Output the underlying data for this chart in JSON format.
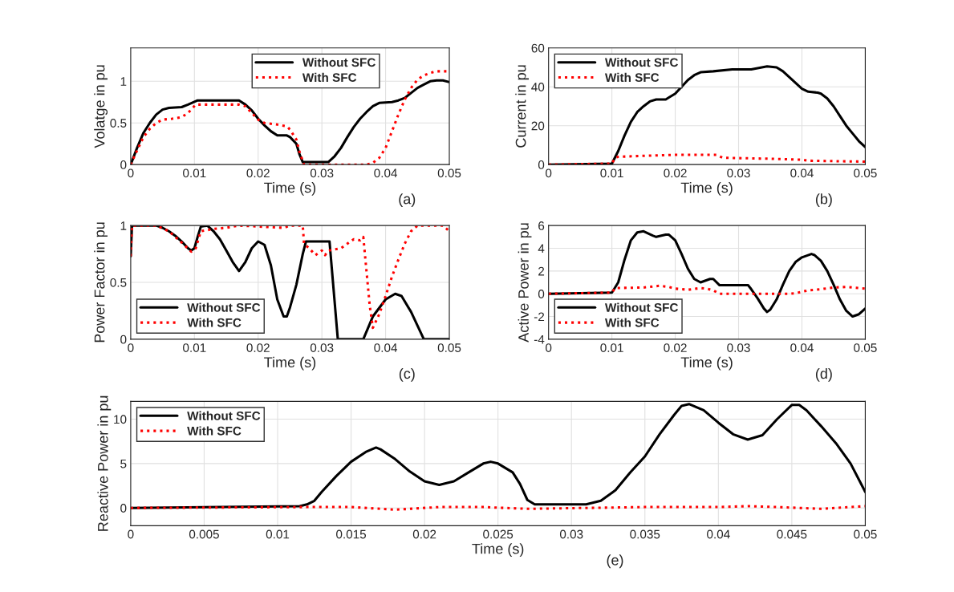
{
  "chart_data": [
    {
      "type": "line",
      "xlabel": "Time (s)",
      "ylabel": "Volatge in pu",
      "annotations": [
        "(a)"
      ],
      "xlim": [
        0,
        0.05
      ],
      "xticks": [
        0,
        0.01,
        0.02,
        0.03,
        0.04,
        0.05
      ],
      "ylim": [
        0,
        1.4
      ],
      "yticks": [
        0,
        0.5,
        1
      ],
      "grid": true,
      "legend": "top right",
      "series": [
        {
          "name": "Without SFC",
          "color": "#000000",
          "line_style": "solid",
          "x": [
            0,
            0.001,
            0.002,
            0.003,
            0.004,
            0.005,
            0.006,
            0.008,
            0.009,
            0.0105,
            0.017,
            0.018,
            0.019,
            0.02,
            0.021,
            0.022,
            0.023,
            0.0245,
            0.025,
            0.026,
            0.0265,
            0.027,
            0.031,
            0.032,
            0.033,
            0.034,
            0.035,
            0.036,
            0.037,
            0.038,
            0.039,
            0.041,
            0.042,
            0.043,
            0.044,
            0.045,
            0.046,
            0.047,
            0.048,
            0.049,
            0.05
          ],
          "values": [
            0,
            0.2,
            0.38,
            0.5,
            0.6,
            0.66,
            0.68,
            0.69,
            0.72,
            0.77,
            0.77,
            0.72,
            0.65,
            0.55,
            0.47,
            0.4,
            0.35,
            0.35,
            0.33,
            0.25,
            0.12,
            0.03,
            0.03,
            0.1,
            0.2,
            0.33,
            0.45,
            0.55,
            0.63,
            0.7,
            0.74,
            0.75,
            0.77,
            0.8,
            0.86,
            0.92,
            0.96,
            1.0,
            1.01,
            1.01,
            0.99
          ]
        },
        {
          "name": "With SFC",
          "color": "#ff0000",
          "line_style": "dotted",
          "x": [
            0,
            0.001,
            0.002,
            0.003,
            0.004,
            0.005,
            0.0065,
            0.008,
            0.009,
            0.0102,
            0.017,
            0.018,
            0.019,
            0.02,
            0.021,
            0.023,
            0.0245,
            0.025,
            0.026,
            0.0265,
            0.0272,
            0.037,
            0.038,
            0.039,
            0.04,
            0.041,
            0.042,
            0.043,
            0.044,
            0.045,
            0.046,
            0.047,
            0.048,
            0.05
          ],
          "values": [
            0,
            0.17,
            0.33,
            0.43,
            0.5,
            0.54,
            0.55,
            0.57,
            0.62,
            0.72,
            0.72,
            0.7,
            0.62,
            0.54,
            0.5,
            0.48,
            0.46,
            0.42,
            0.3,
            0.15,
            0,
            0,
            0.02,
            0.08,
            0.2,
            0.4,
            0.6,
            0.78,
            0.92,
            1.02,
            1.07,
            1.1,
            1.12,
            1.12
          ]
        }
      ]
    },
    {
      "type": "line",
      "xlabel": "Time (s)",
      "ylabel": "Current in pu",
      "annotations": [
        "(b)"
      ],
      "xlim": [
        0,
        0.05
      ],
      "xticks": [
        0,
        0.01,
        0.02,
        0.03,
        0.04,
        0.05
      ],
      "ylim": [
        0,
        60
      ],
      "yticks": [
        0,
        20,
        40,
        60
      ],
      "grid": true,
      "legend": "top left",
      "series": [
        {
          "name": "Without SFC",
          "color": "#000000",
          "line_style": "solid",
          "x": [
            0,
            0.01,
            0.011,
            0.012,
            0.013,
            0.014,
            0.015,
            0.016,
            0.017,
            0.0185,
            0.019,
            0.02,
            0.021,
            0.022,
            0.023,
            0.024,
            0.026,
            0.029,
            0.032,
            0.0345,
            0.036,
            0.037,
            0.038,
            0.039,
            0.04,
            0.041,
            0.0425,
            0.043,
            0.044,
            0.045,
            0.046,
            0.047,
            0.048,
            0.049,
            0.05
          ],
          "values": [
            0,
            0.5,
            7,
            15,
            22,
            27,
            30,
            32.5,
            33.5,
            33.5,
            34.5,
            36.5,
            40,
            43.5,
            46,
            47.5,
            48,
            49,
            49,
            50.5,
            50,
            48,
            45,
            42,
            39,
            37.5,
            37,
            36.5,
            34,
            30,
            25,
            20,
            16,
            12,
            9
          ]
        },
        {
          "name": "With SFC",
          "color": "#ff0000",
          "line_style": "dotted",
          "x": [
            0,
            0.01,
            0.0105,
            0.011,
            0.015,
            0.02,
            0.0265,
            0.0275,
            0.035,
            0.04,
            0.041,
            0.05
          ],
          "values": [
            0,
            0.5,
            3.5,
            4,
            4.5,
            5,
            5,
            3.5,
            3,
            2.5,
            2,
            1.5
          ]
        }
      ]
    },
    {
      "type": "line",
      "xlabel": "Time (s)",
      "ylabel": "Power Factor in pu",
      "annotations": [
        "(c)"
      ],
      "xlim": [
        0,
        0.05
      ],
      "xticks": [
        0,
        0.01,
        0.02,
        0.03,
        0.04,
        0.05
      ],
      "ylim": [
        0,
        1
      ],
      "yticks": [
        0,
        0.5,
        1
      ],
      "grid": true,
      "legend": "bottom left",
      "series": [
        {
          "name": "Without SFC",
          "color": "#000000",
          "line_style": "solid",
          "x": [
            0,
            0.0002,
            0.004,
            0.005,
            0.006,
            0.007,
            0.008,
            0.009,
            0.0095,
            0.01,
            0.0105,
            0.011,
            0.012,
            0.013,
            0.014,
            0.015,
            0.016,
            0.017,
            0.018,
            0.019,
            0.02,
            0.021,
            0.022,
            0.023,
            0.024,
            0.0245,
            0.025,
            0.026,
            0.027,
            0.0275,
            0.0312,
            0.0325,
            0.0365,
            0.038,
            0.04,
            0.0415,
            0.0425,
            0.044,
            0.045,
            0.046,
            0.05
          ],
          "values": [
            0.73,
            1,
            1,
            0.98,
            0.95,
            0.91,
            0.86,
            0.8,
            0.78,
            0.8,
            0.9,
            0.99,
            1.0,
            0.95,
            0.88,
            0.78,
            0.68,
            0.6,
            0.68,
            0.8,
            0.86,
            0.83,
            0.65,
            0.35,
            0.2,
            0.2,
            0.28,
            0.48,
            0.75,
            0.86,
            0.86,
            0,
            0,
            0.2,
            0.35,
            0.4,
            0.38,
            0.24,
            0.12,
            0,
            0
          ]
        },
        {
          "name": "With SFC",
          "color": "#ff0000",
          "line_style": "dotted",
          "x": [
            0,
            0.0002,
            0.004,
            0.006,
            0.008,
            0.0095,
            0.0102,
            0.011,
            0.013,
            0.015,
            0.017,
            0.024,
            0.025,
            0.027,
            0.0272,
            0.028,
            0.029,
            0.03,
            0.0305,
            0.031,
            0.033,
            0.035,
            0.036,
            0.0365,
            0.037,
            0.0375,
            0.038,
            0.039,
            0.04,
            0.041,
            0.042,
            0.043,
            0.044,
            0.045,
            0.049,
            0.05
          ],
          "values": [
            0.73,
            1,
            1,
            0.95,
            0.85,
            0.77,
            0.8,
            0.95,
            0.97,
            0.98,
            1,
            0.98,
            1,
            1,
            0.84,
            0.8,
            0.74,
            0.78,
            0.74,
            0.78,
            0.8,
            0.88,
            0.87,
            0.9,
            0.6,
            0.3,
            0.1,
            0.22,
            0.38,
            0.55,
            0.7,
            0.84,
            0.95,
            1,
            1,
            0.95
          ]
        }
      ]
    },
    {
      "type": "line",
      "xlabel": "Time (s)",
      "ylabel": "Active Power in pu",
      "annotations": [
        "(d)"
      ],
      "xlim": [
        0,
        0.05
      ],
      "xticks": [
        0,
        0.01,
        0.02,
        0.03,
        0.04,
        0.05
      ],
      "ylim": [
        -4,
        6
      ],
      "yticks": [
        -4,
        -2,
        0,
        2,
        4,
        6
      ],
      "grid": true,
      "legend": "bottom left",
      "series": [
        {
          "name": "Without SFC",
          "color": "#000000",
          "line_style": "solid",
          "x": [
            0,
            0.01,
            0.011,
            0.012,
            0.013,
            0.014,
            0.015,
            0.0165,
            0.017,
            0.0185,
            0.019,
            0.02,
            0.021,
            0.022,
            0.023,
            0.024,
            0.0255,
            0.026,
            0.027,
            0.0315,
            0.032,
            0.033,
            0.034,
            0.0345,
            0.035,
            0.036,
            0.037,
            0.038,
            0.039,
            0.04,
            0.0415,
            0.042,
            0.043,
            0.044,
            0.045,
            0.046,
            0.047,
            0.048,
            0.049,
            0.05
          ],
          "values": [
            0,
            0.1,
            1,
            3,
            4.7,
            5.4,
            5.5,
            5.1,
            5.0,
            5.2,
            5.2,
            4.7,
            3.5,
            2.2,
            1.3,
            1.0,
            1.3,
            1.3,
            0.75,
            0.75,
            0.4,
            -0.4,
            -1.3,
            -1.6,
            -1.4,
            -0.5,
            0.8,
            2.0,
            2.8,
            3.2,
            3.5,
            3.4,
            2.9,
            2.0,
            0.8,
            -0.5,
            -1.5,
            -2.0,
            -1.8,
            -1.3
          ]
        },
        {
          "name": "With SFC",
          "color": "#ff0000",
          "line_style": "dotted",
          "x": [
            0,
            0.01,
            0.0105,
            0.015,
            0.0175,
            0.019,
            0.02,
            0.022,
            0.024,
            0.025,
            0.026,
            0.027,
            0.038,
            0.039,
            0.041,
            0.043,
            0.045,
            0.047,
            0.05
          ],
          "values": [
            0,
            0.1,
            0.5,
            0.55,
            0.7,
            0.6,
            0.45,
            0.35,
            0.5,
            0.45,
            0.3,
            0,
            0,
            0.05,
            0.3,
            0.4,
            0.55,
            0.6,
            0.45
          ]
        }
      ]
    },
    {
      "type": "line",
      "xlabel": "Time (s)",
      "ylabel": "Reactive Power in pu",
      "annotations": [
        "(e)"
      ],
      "xlim": [
        0,
        0.05
      ],
      "xticks": [
        0,
        0.005,
        0.01,
        0.015,
        0.02,
        0.025,
        0.03,
        0.035,
        0.04,
        0.045,
        0.05
      ],
      "ylim": [
        -2,
        12
      ],
      "yticks": [
        0,
        5,
        10
      ],
      "grid": true,
      "legend": "top left",
      "series": [
        {
          "name": "Without SFC",
          "color": "#000000",
          "line_style": "solid",
          "x": [
            0,
            0.0115,
            0.012,
            0.0125,
            0.013,
            0.014,
            0.015,
            0.016,
            0.0167,
            0.017,
            0.018,
            0.019,
            0.02,
            0.021,
            0.022,
            0.023,
            0.024,
            0.0245,
            0.025,
            0.026,
            0.0265,
            0.027,
            0.0275,
            0.031,
            0.032,
            0.033,
            0.034,
            0.035,
            0.036,
            0.037,
            0.0375,
            0.038,
            0.039,
            0.04,
            0.041,
            0.042,
            0.043,
            0.044,
            0.045,
            0.0455,
            0.046,
            0.047,
            0.048,
            0.049,
            0.05
          ],
          "values": [
            0,
            0.2,
            0.4,
            0.8,
            1.8,
            3.6,
            5.2,
            6.3,
            6.8,
            6.6,
            5.5,
            4.1,
            3.0,
            2.6,
            3.0,
            4.0,
            5.0,
            5.2,
            5.0,
            4.0,
            2.7,
            0.9,
            0.4,
            0.4,
            0.8,
            2.0,
            4.0,
            5.8,
            8.3,
            10.5,
            11.5,
            11.7,
            11.0,
            9.6,
            8.3,
            7.7,
            8.2,
            10,
            11.6,
            11.6,
            11,
            9.2,
            7.3,
            5.0,
            1.8
          ]
        },
        {
          "name": "With SFC",
          "color": "#ff0000",
          "line_style": "dotted",
          "x": [
            0,
            0.012,
            0.015,
            0.018,
            0.021,
            0.024,
            0.027,
            0.035,
            0.04,
            0.042,
            0.044,
            0.047,
            0.05
          ],
          "values": [
            0,
            0.1,
            0.1,
            -0.2,
            0.1,
            0.1,
            -0.1,
            0.1,
            0.1,
            0.2,
            0.1,
            -0.1,
            0.2
          ]
        }
      ]
    }
  ]
}
